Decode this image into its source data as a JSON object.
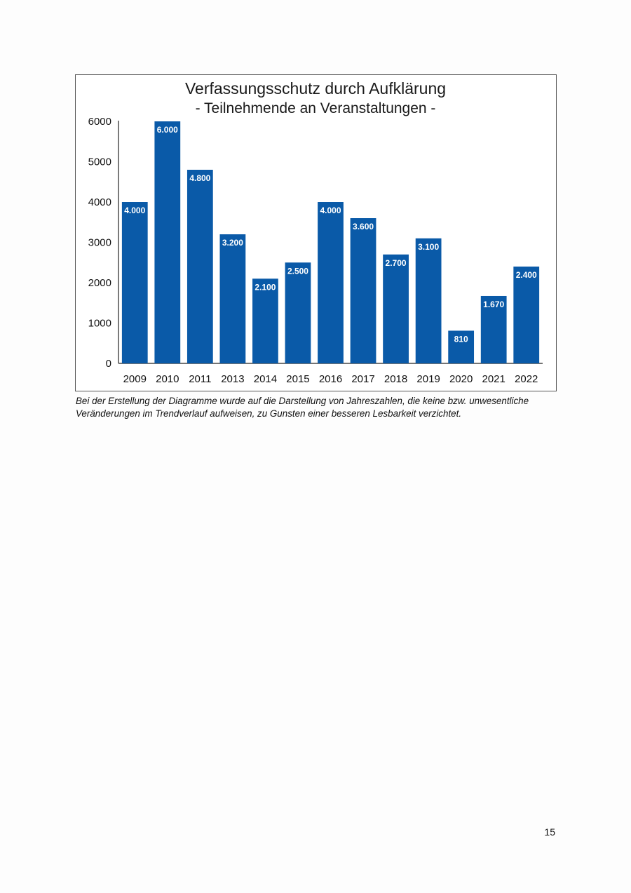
{
  "chart_data": {
    "type": "bar",
    "title": "Verfassungsschutz durch Aufklärung",
    "subtitle": "- Teilnehmende an Veranstaltungen -",
    "categories": [
      "2009",
      "2010",
      "2011",
      "2013",
      "2014",
      "2015",
      "2016",
      "2017",
      "2018",
      "2019",
      "2020",
      "2021",
      "2022"
    ],
    "values": [
      4000,
      6000,
      4800,
      3200,
      2100,
      2500,
      4000,
      3600,
      2700,
      3100,
      810,
      1670,
      2400
    ],
    "data_labels": [
      "4.000",
      "6.000",
      "4.800",
      "3.200",
      "2.100",
      "2.500",
      "4.000",
      "3.600",
      "2.700",
      "3.100",
      "810",
      "1.670",
      "2.400"
    ],
    "yticks": [
      "0",
      "1000",
      "2000",
      "3000",
      "4000",
      "5000",
      "6000"
    ],
    "ylim": [
      0,
      6000
    ],
    "bar_color": "#0a5aa8",
    "grid": false,
    "legend": "none"
  },
  "footnote": "Bei der Erstellung der Diagramme wurde auf die Darstellung von Jahreszahlen, die keine bzw. unwesentliche Veränderungen im Trendverlauf aufweisen, zu Gunsten einer besseren Lesbarkeit verzichtet.",
  "page_number": "15"
}
